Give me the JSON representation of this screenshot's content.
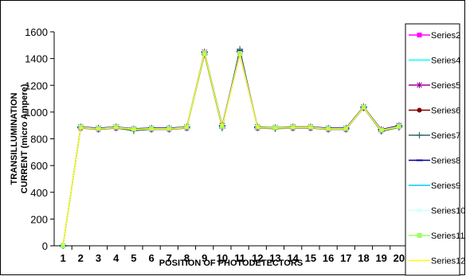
{
  "chart_data": {
    "type": "line",
    "title": "",
    "xlabel": "POSITION OF PHOTODETECTORS",
    "ylabel_line1": "TRANSILLUMINATION",
    "ylabel_line2": "CURRENT (micro Ampere)",
    "x": [
      1,
      2,
      3,
      4,
      5,
      6,
      7,
      8,
      9,
      10,
      11,
      12,
      13,
      14,
      15,
      16,
      17,
      18,
      19,
      20
    ],
    "ylim": [
      0,
      1600
    ],
    "yticks": [
      0,
      200,
      400,
      600,
      800,
      1000,
      1200,
      1400,
      1600
    ],
    "grid": false,
    "legend_position": "right",
    "series": [
      {
        "name": "Series2",
        "color": "#ff00ff",
        "marker": "square",
        "values": [
          0,
          880,
          870,
          880,
          870,
          870,
          870,
          880,
          1440,
          890,
          1430,
          880,
          880,
          880,
          880,
          870,
          870,
          1030,
          860,
          890
        ]
      },
      {
        "name": "Series4",
        "color": "#00ffff",
        "marker": "none",
        "values": [
          0,
          885,
          875,
          885,
          870,
          875,
          875,
          885,
          1445,
          895,
          1440,
          885,
          880,
          885,
          885,
          875,
          875,
          1035,
          865,
          895
        ]
      },
      {
        "name": "Series5",
        "color": "#990099",
        "marker": "star",
        "values": [
          0,
          890,
          880,
          890,
          875,
          880,
          880,
          890,
          1450,
          900,
          1450,
          890,
          885,
          890,
          890,
          880,
          880,
          1040,
          870,
          900
        ]
      },
      {
        "name": "Series6",
        "color": "#800000",
        "marker": "circle",
        "values": [
          0,
          885,
          878,
          885,
          872,
          878,
          878,
          886,
          1442,
          892,
          1438,
          886,
          882,
          886,
          886,
          878,
          878,
          1036,
          864,
          892
        ]
      },
      {
        "name": "Series7",
        "color": "#336666",
        "marker": "plus",
        "values": [
          0,
          880,
          870,
          880,
          860,
          870,
          870,
          880,
          1430,
          880,
          1470,
          880,
          875,
          880,
          880,
          870,
          870,
          1030,
          855,
          885
        ]
      },
      {
        "name": "Series8",
        "color": "#000099",
        "marker": "dash",
        "values": [
          0,
          888,
          880,
          888,
          876,
          880,
          880,
          888,
          1448,
          896,
          1455,
          888,
          884,
          888,
          888,
          880,
          880,
          1038,
          868,
          896
        ]
      },
      {
        "name": "Series9",
        "color": "#00ccff",
        "marker": "none",
        "values": [
          0,
          886,
          876,
          886,
          872,
          876,
          876,
          886,
          1444,
          894,
          1442,
          886,
          882,
          886,
          886,
          876,
          876,
          1034,
          866,
          894
        ]
      },
      {
        "name": "Series10",
        "color": "#ccffff",
        "marker": "cross",
        "values": [
          0,
          884,
          874,
          884,
          870,
          874,
          874,
          884,
          1446,
          890,
          1436,
          884,
          880,
          884,
          884,
          874,
          874,
          1032,
          862,
          890
        ]
      },
      {
        "name": "Series11",
        "color": "#99ff66",
        "marker": "square",
        "values": [
          0,
          887,
          877,
          887,
          873,
          877,
          877,
          887,
          1443,
          893,
          1439,
          887,
          883,
          887,
          887,
          877,
          877,
          1037,
          865,
          893
        ]
      },
      {
        "name": "Series12",
        "color": "#ffff00",
        "marker": "none",
        "values": [
          0,
          883,
          873,
          883,
          869,
          873,
          873,
          883,
          1441,
          889,
          1435,
          883,
          879,
          883,
          883,
          873,
          873,
          1033,
          861,
          889
        ]
      }
    ]
  }
}
